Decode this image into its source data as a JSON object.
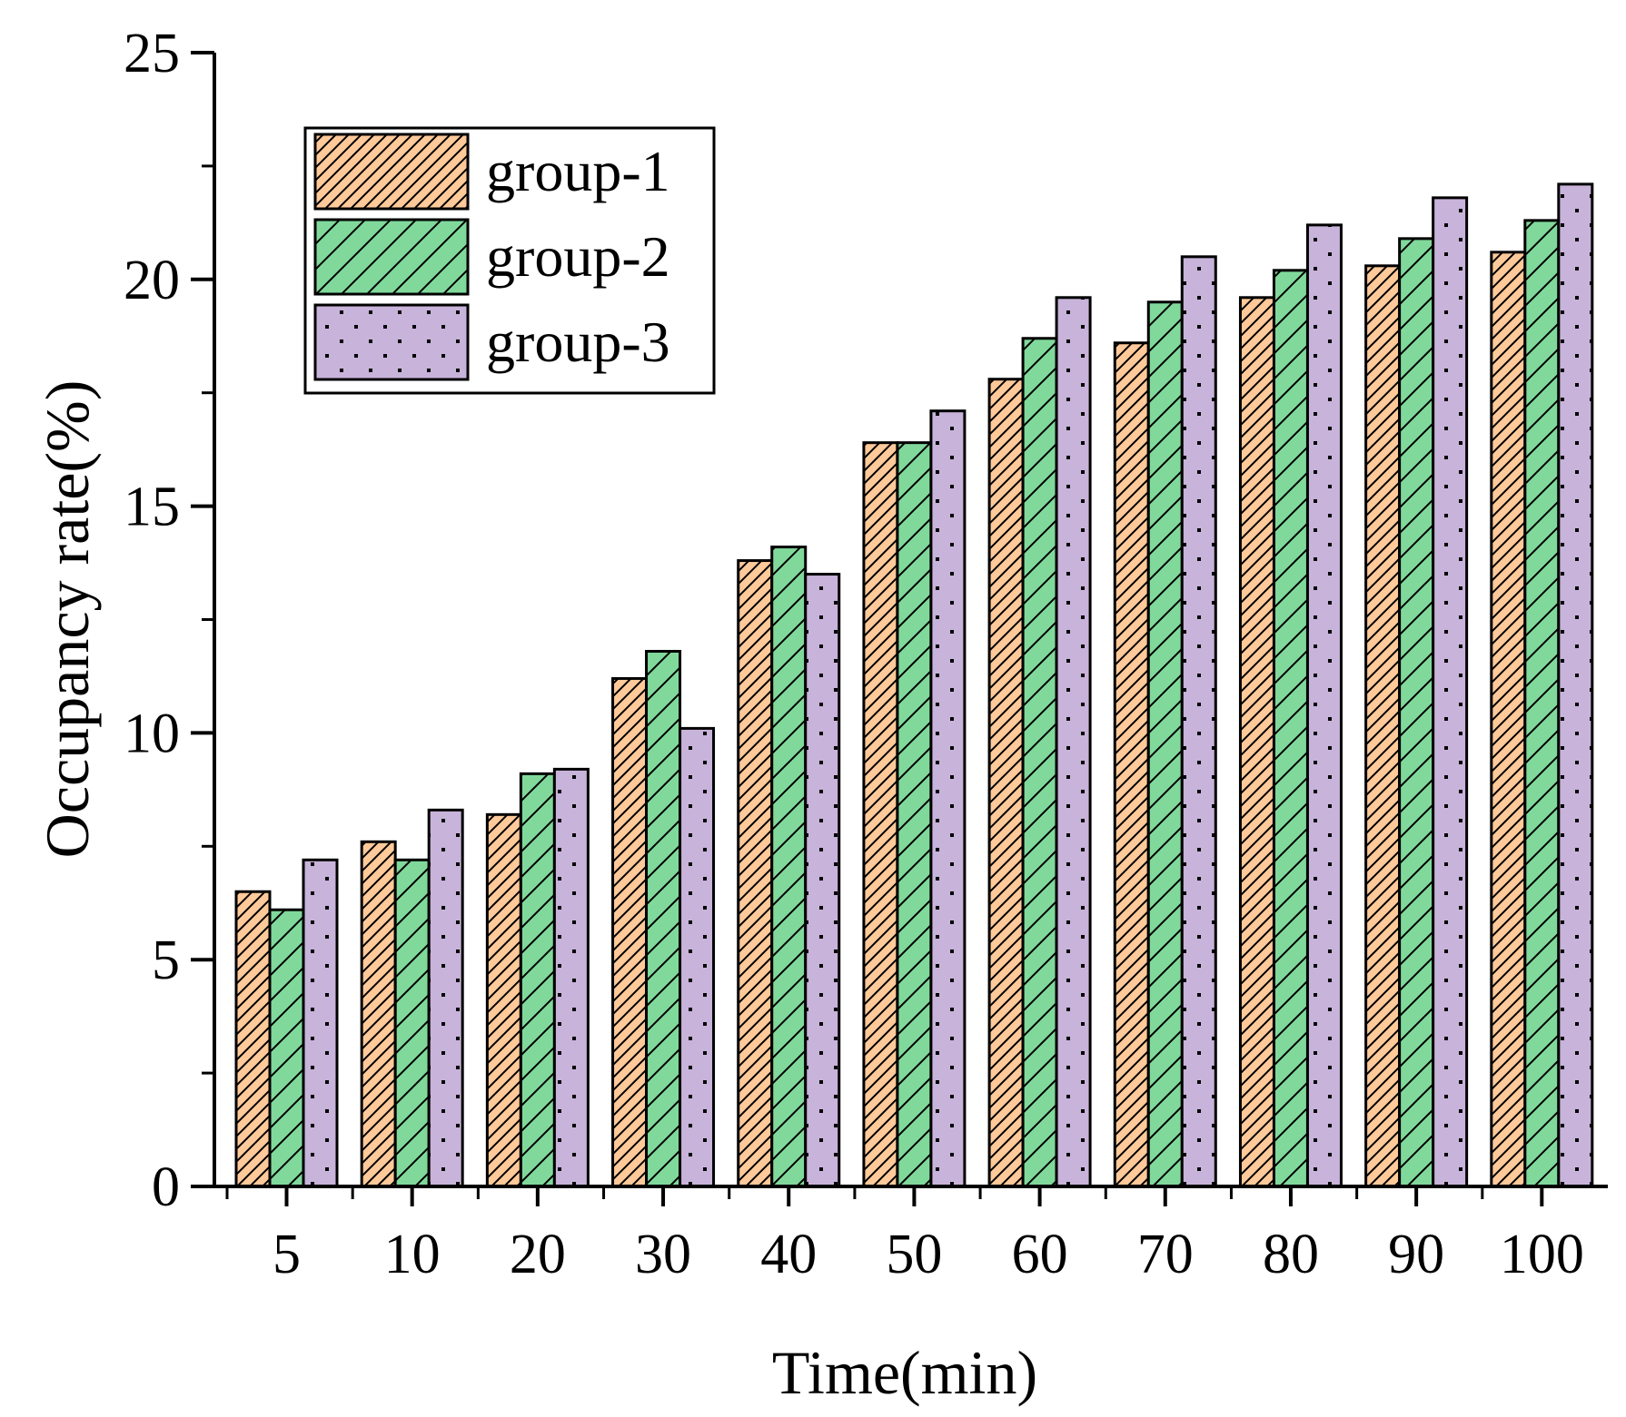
{
  "chart_data": {
    "type": "bar",
    "title": "",
    "xlabel": "Time(min)",
    "ylabel": "Occupancy rate(%)",
    "ylim": [
      0,
      25
    ],
    "yticks": [
      0,
      5,
      10,
      15,
      20,
      25
    ],
    "categories": [
      "5",
      "10",
      "20",
      "30",
      "40",
      "50",
      "60",
      "70",
      "80",
      "90",
      "100"
    ],
    "series": [
      {
        "name": "group-1",
        "color": "#FFC999",
        "pattern": "fine-hatch",
        "values": [
          6.5,
          7.6,
          8.2,
          11.2,
          13.8,
          16.4,
          17.8,
          18.6,
          19.6,
          20.3,
          20.6
        ]
      },
      {
        "name": "group-2",
        "color": "#80D99B",
        "pattern": "coarse-hatch",
        "values": [
          6.1,
          7.2,
          9.1,
          11.8,
          14.1,
          16.4,
          18.7,
          19.5,
          20.2,
          20.9,
          21.3
        ]
      },
      {
        "name": "group-3",
        "color": "#C8B3DA",
        "pattern": "dots",
        "values": [
          7.2,
          8.3,
          9.2,
          10.1,
          13.5,
          17.1,
          19.6,
          20.5,
          21.2,
          21.8,
          22.1
        ]
      }
    ],
    "legend": "top-left",
    "grid": false
  }
}
